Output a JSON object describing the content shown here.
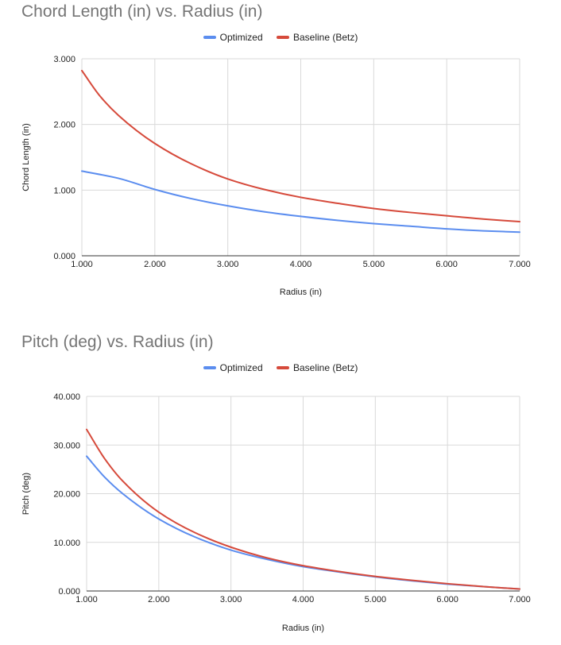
{
  "chart_data": [
    {
      "type": "line",
      "title": "Chord Length (in) vs. Radius (in)",
      "xlabel": "Radius (in)",
      "ylabel": "Chord Length (in)",
      "xlim": [
        1,
        7
      ],
      "ylim": [
        0,
        3
      ],
      "x_ticks": [
        "1.000",
        "2.000",
        "3.000",
        "4.000",
        "5.000",
        "6.000",
        "7.000"
      ],
      "y_ticks": [
        "0.000",
        "1.000",
        "2.000",
        "3.000"
      ],
      "grid": true,
      "legend_position": "top",
      "series": [
        {
          "name": "Optimized",
          "color": "#5b8def",
          "x": [
            1.0,
            1.5,
            2.0,
            2.5,
            3.0,
            3.5,
            4.0,
            4.5,
            5.0,
            5.5,
            6.0,
            6.5,
            7.0
          ],
          "y": [
            1.29,
            1.18,
            1.01,
            0.87,
            0.76,
            0.67,
            0.6,
            0.54,
            0.49,
            0.45,
            0.41,
            0.38,
            0.36
          ]
        },
        {
          "name": "Baseline (Betz)",
          "color": "#d64a3b",
          "x": [
            1.0,
            1.25,
            1.5,
            2.0,
            2.5,
            3.0,
            3.5,
            4.0,
            4.5,
            5.0,
            5.5,
            6.0,
            6.5,
            7.0
          ],
          "y": [
            2.82,
            2.43,
            2.14,
            1.71,
            1.4,
            1.17,
            1.01,
            0.89,
            0.8,
            0.72,
            0.66,
            0.61,
            0.56,
            0.52
          ]
        }
      ]
    },
    {
      "type": "line",
      "title": "Pitch (deg) vs. Radius (in)",
      "xlabel": "Radius (in)",
      "ylabel": "Pitch (deg)",
      "xlim": [
        1,
        7
      ],
      "ylim": [
        0,
        40
      ],
      "x_ticks": [
        "1.000",
        "2.000",
        "3.000",
        "4.000",
        "5.000",
        "6.000",
        "7.000"
      ],
      "y_ticks": [
        "0.000",
        "10.000",
        "20.000",
        "30.000",
        "40.000"
      ],
      "grid": true,
      "legend_position": "top",
      "series": [
        {
          "name": "Optimized",
          "color": "#5b8def",
          "x": [
            1.0,
            1.25,
            1.5,
            2.0,
            2.5,
            3.0,
            3.5,
            4.0,
            4.5,
            5.0,
            5.5,
            6.0,
            6.5,
            7.0
          ],
          "y": [
            27.7,
            23.4,
            20.0,
            14.8,
            11.1,
            8.4,
            6.5,
            5.0,
            3.9,
            2.9,
            2.1,
            1.4,
            0.9,
            0.4
          ]
        },
        {
          "name": "Baseline (Betz)",
          "color": "#d64a3b",
          "x": [
            1.0,
            1.25,
            1.5,
            2.0,
            2.5,
            3.0,
            3.5,
            4.0,
            4.5,
            5.0,
            5.5,
            6.0,
            6.5,
            7.0
          ],
          "y": [
            33.2,
            27.2,
            22.6,
            16.2,
            12.0,
            9.0,
            6.8,
            5.2,
            4.0,
            3.0,
            2.2,
            1.5,
            0.9,
            0.4
          ]
        }
      ]
    }
  ]
}
